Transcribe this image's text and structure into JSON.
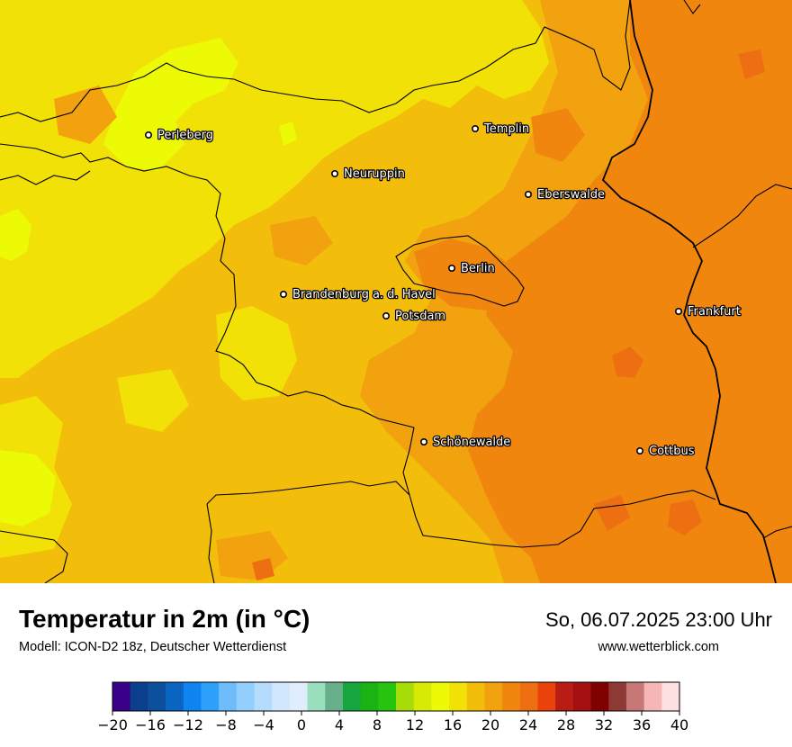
{
  "header": {
    "title": "Temperatur in 2m (in °C)",
    "model": "Modell: ICON-D2 18z, Deutscher Wetterdienst",
    "datetime": "So, 06.07.2025 23:00 Uhr",
    "website": "www.wetterblick.com"
  },
  "map": {
    "cities": [
      {
        "name": "Perleberg"
      },
      {
        "name": "Templin"
      },
      {
        "name": "Neuruppin"
      },
      {
        "name": "Eberswalde"
      },
      {
        "name": "Berlin"
      },
      {
        "name": "Brandenburg a. d. Havel"
      },
      {
        "name": "Potsdam"
      },
      {
        "name": "Frankfurt"
      },
      {
        "name": "Schönewalde"
      },
      {
        "name": "Cottbus"
      }
    ],
    "temperature_zones": [
      {
        "range": "14–16",
        "color": "#ecfa06"
      },
      {
        "range": "16–18",
        "color": "#f2e106"
      },
      {
        "range": "18–20",
        "color": "#f3bd0b"
      },
      {
        "range": "20–22",
        "color": "#f2a20e"
      },
      {
        "range": "22–24",
        "color": "#f0860e"
      },
      {
        "range": "24–26",
        "color": "#ee6f11"
      }
    ]
  },
  "legend": {
    "ticks": [
      "−20",
      "−16",
      "−12",
      "−8",
      "−4",
      "0",
      "4",
      "8",
      "12",
      "16",
      "20",
      "24",
      "28",
      "32",
      "36",
      "40"
    ],
    "colors": [
      "#3a0088",
      "#0b3f8c",
      "#0e4f9d",
      "#0a64c2",
      "#0e84f0",
      "#2da1fa",
      "#6fbcfb",
      "#92cffc",
      "#b5dcfd",
      "#d0e7fd",
      "#dfedfc",
      "#99dfbd",
      "#67b08b",
      "#17a540",
      "#1ab313",
      "#26c30f",
      "#a6dc07",
      "#d6ea06",
      "#ecfa06",
      "#f2e106",
      "#f3bd0b",
      "#f2a20e",
      "#f0860e",
      "#ee6f11",
      "#e9420c",
      "#b81c15",
      "#a21012",
      "#7e0100",
      "#8d3935",
      "#c67877",
      "#f7b6b6",
      "#fde0e2"
    ]
  }
}
